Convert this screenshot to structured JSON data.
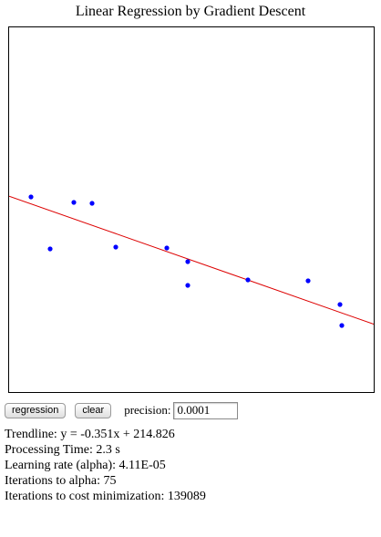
{
  "title": "Linear Regression by Gradient Descent",
  "controls": {
    "regression_label": "regression",
    "clear_label": "clear",
    "precision_label": "precision:",
    "precision_value": "0.0001"
  },
  "results": {
    "trendline": "Trendline: y = -0.351x + 214.826",
    "processing_time": "Processing Time: 2.3 s",
    "learning_rate": "Learning rate (alpha): 4.11E-05",
    "iterations_alpha": "Iterations to alpha: 75",
    "iterations_cost": "Iterations to cost minimization: 139089"
  },
  "chart_data": {
    "type": "scatter",
    "xlim": [
      0,
      400
    ],
    "ylim": [
      0,
      400
    ],
    "points": [
      {
        "x": 24,
        "y": 214
      },
      {
        "x": 45,
        "y": 157
      },
      {
        "x": 71,
        "y": 208
      },
      {
        "x": 91,
        "y": 207
      },
      {
        "x": 117,
        "y": 159
      },
      {
        "x": 173,
        "y": 158
      },
      {
        "x": 196,
        "y": 143
      },
      {
        "x": 196,
        "y": 117
      },
      {
        "x": 262,
        "y": 123
      },
      {
        "x": 328,
        "y": 122
      },
      {
        "x": 363,
        "y": 96
      },
      {
        "x": 365,
        "y": 73
      }
    ],
    "trendline": {
      "slope": -0.351,
      "intercept": 214.826
    },
    "colors": {
      "points": "#0000ff",
      "trendline": "#dd0000"
    }
  }
}
